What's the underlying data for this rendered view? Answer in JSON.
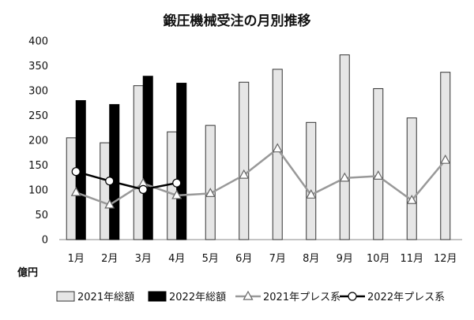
{
  "chart_data": {
    "type": "bar",
    "title": "鍛圧機械受注の月別推移",
    "ylabel": "億円",
    "xlabel": "",
    "categories": [
      "1月",
      "2月",
      "3月",
      "4月",
      "5月",
      "6月",
      "7月",
      "8月",
      "9月",
      "10月",
      "11月",
      "12月"
    ],
    "ylim": [
      0,
      400
    ],
    "yticks": [
      0,
      50,
      100,
      150,
      200,
      250,
      300,
      350,
      400
    ],
    "grid": false,
    "legend_position": "bottom",
    "bar_series": [
      {
        "name": "2021年総額",
        "color": "#e6e6e6",
        "values": [
          205,
          195,
          310,
          217,
          230,
          317,
          343,
          236,
          372,
          304,
          245,
          337
        ]
      },
      {
        "name": "2022年総額",
        "color": "#000000",
        "values": [
          280,
          272,
          329,
          315,
          null,
          null,
          null,
          null,
          null,
          null,
          null,
          null
        ]
      }
    ],
    "line_series": [
      {
        "name": "2021年プレス系",
        "color": "#999999",
        "marker": "triangle",
        "values": [
          95,
          70,
          113,
          89,
          93,
          130,
          183,
          90,
          124,
          128,
          79,
          160
        ]
      },
      {
        "name": "2022年プレス系",
        "color": "#000000",
        "marker": "circle",
        "values": [
          137,
          118,
          101,
          114,
          null,
          null,
          null,
          null,
          null,
          null,
          null,
          null
        ]
      }
    ]
  }
}
